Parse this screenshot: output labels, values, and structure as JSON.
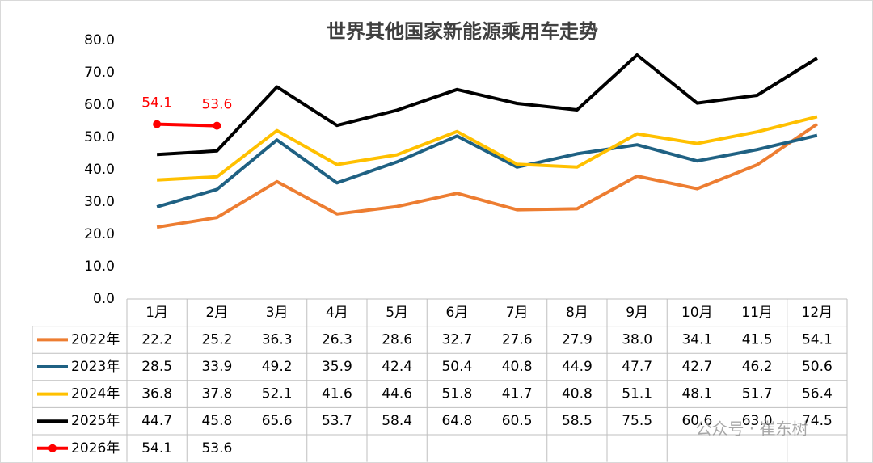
{
  "chart_data": {
    "type": "line",
    "title": "世界其他国家新能源乘用车走势",
    "categories": [
      "1月",
      "2月",
      "3月",
      "4月",
      "5月",
      "6月",
      "7月",
      "8月",
      "9月",
      "10月",
      "11月",
      "12月"
    ],
    "ylim": [
      0,
      80
    ],
    "yticks": [
      {
        "value": 0,
        "label": "0.0"
      },
      {
        "value": 10,
        "label": "10.0"
      },
      {
        "value": 20,
        "label": "20.0"
      },
      {
        "value": 30,
        "label": "30.0"
      },
      {
        "value": 40,
        "label": "40.0"
      },
      {
        "value": 50,
        "label": "50.0"
      },
      {
        "value": 60,
        "label": "60.0"
      },
      {
        "value": 70,
        "label": "70.0"
      },
      {
        "value": 80,
        "label": "80.0"
      }
    ],
    "grid": false,
    "series": [
      {
        "name": "2022年",
        "color": "#ed7d31",
        "markers": false,
        "values": [
          22.2,
          25.2,
          36.3,
          26.3,
          28.6,
          32.7,
          27.6,
          27.9,
          38.0,
          34.1,
          41.5,
          54.1
        ],
        "value_labels": [
          "22.2",
          "25.2",
          "36.3",
          "26.3",
          "28.6",
          "32.7",
          "27.6",
          "27.9",
          "38.0",
          "34.1",
          "41.5",
          "54.1"
        ]
      },
      {
        "name": "2023年",
        "color": "#1f6183",
        "markers": false,
        "values": [
          28.5,
          33.9,
          49.2,
          35.9,
          42.4,
          50.4,
          40.8,
          44.9,
          47.7,
          42.7,
          46.2,
          50.6
        ],
        "value_labels": [
          "28.5",
          "33.9",
          "49.2",
          "35.9",
          "42.4",
          "50.4",
          "40.8",
          "44.9",
          "47.7",
          "42.7",
          "46.2",
          "50.6"
        ]
      },
      {
        "name": "2024年",
        "color": "#ffc000",
        "markers": false,
        "values": [
          36.8,
          37.8,
          52.1,
          41.6,
          44.6,
          51.8,
          41.7,
          40.8,
          51.1,
          48.1,
          51.7,
          56.4
        ],
        "value_labels": [
          "36.8",
          "37.8",
          "52.1",
          "41.6",
          "44.6",
          "51.8",
          "41.7",
          "40.8",
          "51.1",
          "48.1",
          "51.7",
          "56.4"
        ]
      },
      {
        "name": "2025年",
        "color": "#000000",
        "markers": false,
        "values": [
          44.7,
          45.8,
          65.6,
          53.7,
          58.4,
          64.8,
          60.5,
          58.5,
          75.5,
          60.6,
          63.0,
          74.5
        ],
        "value_labels": [
          "44.7",
          "45.8",
          "65.6",
          "53.7",
          "58.4",
          "64.8",
          "60.5",
          "58.5",
          "75.5",
          "60.6",
          "63.0",
          "74.5"
        ]
      },
      {
        "name": "2026年",
        "color": "#ff0000",
        "markers": true,
        "data_labels": true,
        "values": [
          54.1,
          53.6,
          null,
          null,
          null,
          null,
          null,
          null,
          null,
          null,
          null,
          null
        ],
        "value_labels": [
          "54.1",
          "53.6",
          null,
          null,
          null,
          null,
          null,
          null,
          null,
          null,
          null,
          null
        ]
      }
    ],
    "watermark": "公众号 · 崔东树"
  }
}
